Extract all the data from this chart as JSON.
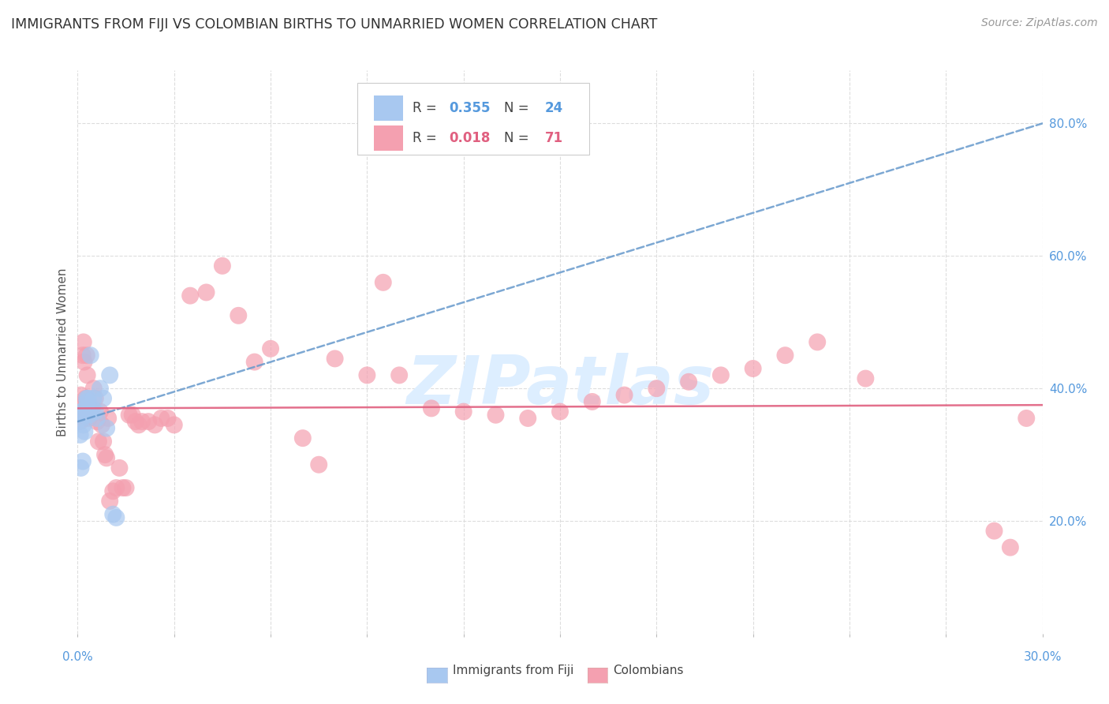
{
  "title": "IMMIGRANTS FROM FIJI VS COLOMBIAN BIRTHS TO UNMARRIED WOMEN CORRELATION CHART",
  "source": "Source: ZipAtlas.com",
  "ylabel": "Births to Unmarried Women",
  "xlim": [
    0.0,
    30.0
  ],
  "ylim": [
    3.0,
    88.0
  ],
  "yticks": [
    20.0,
    40.0,
    60.0,
    80.0
  ],
  "ytick_labels": [
    "20.0%",
    "40.0%",
    "60.0%",
    "80.0%"
  ],
  "fiji_R": "0.355",
  "fiji_N": "24",
  "colombian_R": "0.018",
  "colombian_N": "71",
  "fiji_color": "#a8c8f0",
  "colombian_color": "#f4a0b0",
  "fiji_trend_color": "#6699cc",
  "colombian_trend_color": "#e06080",
  "fiji_label_color": "#5599dd",
  "colombian_label_color": "#e06080",
  "watermark": "ZIPatlas",
  "watermark_color": "#ddeeff",
  "fiji_x": [
    0.08,
    0.1,
    0.12,
    0.14,
    0.16,
    0.18,
    0.2,
    0.22,
    0.25,
    0.28,
    0.3,
    0.33,
    0.36,
    0.4,
    0.45,
    0.5,
    0.55,
    0.6,
    0.7,
    0.8,
    0.9,
    1.0,
    1.1,
    1.2
  ],
  "fiji_y": [
    33.0,
    28.0,
    36.5,
    35.5,
    29.0,
    34.5,
    36.0,
    33.5,
    37.0,
    38.5,
    38.0,
    38.5,
    36.0,
    45.0,
    37.0,
    38.5,
    36.5,
    35.5,
    40.0,
    38.5,
    34.0,
    42.0,
    21.0,
    20.5
  ],
  "colombian_x": [
    0.05,
    0.08,
    0.1,
    0.12,
    0.14,
    0.16,
    0.18,
    0.2,
    0.22,
    0.25,
    0.28,
    0.3,
    0.33,
    0.36,
    0.4,
    0.45,
    0.5,
    0.55,
    0.6,
    0.65,
    0.7,
    0.75,
    0.8,
    0.85,
    0.9,
    0.95,
    1.0,
    1.1,
    1.2,
    1.3,
    1.4,
    1.5,
    1.6,
    1.7,
    1.8,
    1.9,
    2.0,
    2.2,
    2.4,
    2.6,
    2.8,
    3.0,
    3.5,
    4.0,
    4.5,
    5.0,
    5.5,
    6.0,
    7.0,
    7.5,
    8.0,
    9.0,
    9.5,
    10.0,
    11.0,
    12.0,
    13.0,
    14.0,
    15.0,
    16.0,
    17.0,
    18.0,
    19.0,
    20.0,
    21.0,
    22.0,
    23.0,
    24.5,
    28.5,
    29.0,
    29.5
  ],
  "colombian_y": [
    36.5,
    35.0,
    39.0,
    37.5,
    36.0,
    45.0,
    47.0,
    44.0,
    35.5,
    38.5,
    45.0,
    42.0,
    38.0,
    35.5,
    36.0,
    37.0,
    40.0,
    38.5,
    35.0,
    32.0,
    36.5,
    34.5,
    32.0,
    30.0,
    29.5,
    35.5,
    23.0,
    24.5,
    25.0,
    28.0,
    25.0,
    25.0,
    36.0,
    36.0,
    35.0,
    34.5,
    35.0,
    35.0,
    34.5,
    35.5,
    35.5,
    34.5,
    54.0,
    54.5,
    58.5,
    51.0,
    44.0,
    46.0,
    32.5,
    28.5,
    44.5,
    42.0,
    56.0,
    42.0,
    37.0,
    36.5,
    36.0,
    35.5,
    36.5,
    38.0,
    39.0,
    40.0,
    41.0,
    42.0,
    43.0,
    45.0,
    47.0,
    41.5,
    18.5,
    16.0,
    35.5
  ],
  "background_color": "#ffffff",
  "grid_color": "#dddddd",
  "title_fontsize": 12.5,
  "source_fontsize": 10,
  "tick_fontsize": 11,
  "ylabel_fontsize": 11
}
